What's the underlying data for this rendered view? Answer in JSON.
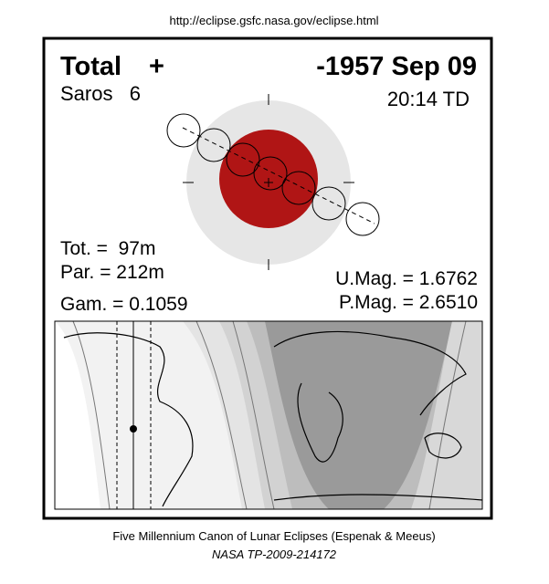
{
  "header": {
    "url": "http://eclipse.gsfc.nasa.gov/eclipse.html"
  },
  "eclipse": {
    "type": "Total",
    "symbol": "+",
    "date": "-1957 Sep 09",
    "saros": "Saros   6",
    "time": "20:14 TD",
    "tot": "Tot. =  97m",
    "par": "Par. = 212m",
    "gam": "Gam. = 0.1059",
    "umag": "U.Mag. = 1.6762",
    "pmag": "P.Mag. = 2.6510"
  },
  "footer": {
    "line1": "Five Millennium Canon of Lunar Eclipses (Espenak & Meeus)",
    "line2": "NASA TP-2009-214172"
  }
}
